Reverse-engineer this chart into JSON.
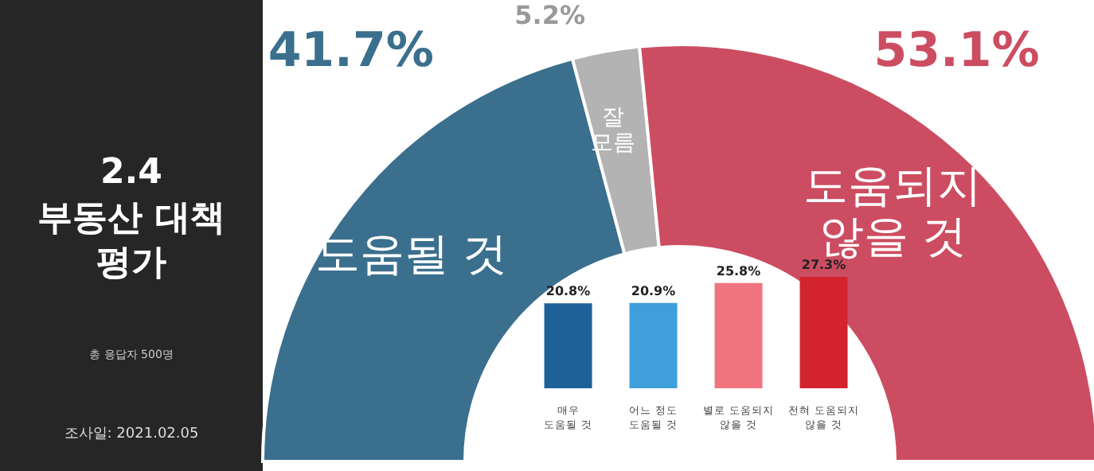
{
  "chart_data": [
    {
      "type": "donut",
      "title": "2.4\n부동산 대책\n평가",
      "categories": [
        "도움될 것",
        "잘 모름",
        "도움되지 않을 것"
      ],
      "values": [
        41.7,
        5.2,
        53.1
      ],
      "colors": [
        "#3b6f8e",
        "#b3b3b3",
        "#cc4d61"
      ],
      "value_labels": [
        "41.7%",
        "5.2%",
        "53.1%"
      ],
      "annotations": [
        "총 응답자 500명",
        "조사일: 2021.02.05"
      ]
    },
    {
      "type": "bar",
      "categories": [
        "매우 도움될 것",
        "어느 정도 도움될 것",
        "별로 도움되지 않을 것",
        "전혀 도움되지 않을 것"
      ],
      "values": [
        20.8,
        20.9,
        25.8,
        27.3
      ],
      "colors": [
        "#1d6199",
        "#3f9fdc",
        "#ef7480",
        "#d3232f"
      ],
      "value_labels": [
        "20.8%",
        "20.9%",
        "25.8%",
        "27.3%"
      ]
    }
  ]
}
